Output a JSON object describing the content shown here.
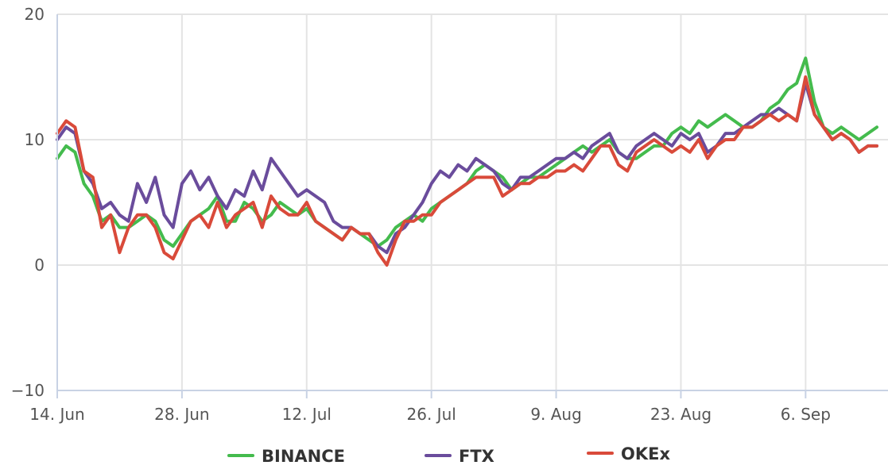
{
  "chart_data": {
    "type": "line",
    "title": "",
    "xlabel": "",
    "ylabel": "",
    "ylim": [
      -10,
      20
    ],
    "y_ticks": [
      "20",
      "10",
      "0",
      "−10"
    ],
    "y_tick_values": [
      20,
      10,
      0,
      -10
    ],
    "x_ticks": [
      "14. Jun",
      "28. Jun",
      "12. Jul",
      "26. Jul",
      "9. Aug",
      "23. Aug",
      "6. Sep"
    ],
    "x_tick_days": [
      0,
      14,
      28,
      42,
      56,
      70,
      84
    ],
    "x_range_days": [
      0,
      92
    ],
    "legend_position": "bottom",
    "series": [
      {
        "name": "BINANCE",
        "color": "#44bb4d",
        "x": [
          0,
          1,
          2,
          3,
          4,
          5,
          6,
          7,
          8,
          9,
          10,
          11,
          12,
          13,
          14,
          15,
          16,
          17,
          18,
          19,
          20,
          21,
          22,
          23,
          24,
          25,
          26,
          27,
          28,
          29,
          30,
          31,
          32,
          33,
          34,
          35,
          36,
          37,
          38,
          39,
          40,
          41,
          42,
          43,
          44,
          45,
          46,
          47,
          48,
          49,
          50,
          51,
          52,
          53,
          54,
          55,
          56,
          57,
          58,
          59,
          60,
          61,
          62,
          63,
          64,
          65,
          66,
          67,
          68,
          69,
          70,
          71,
          72,
          73,
          74,
          75,
          76,
          77,
          78,
          79,
          80,
          81,
          82,
          83,
          84,
          85,
          86,
          87,
          88,
          89,
          90,
          91,
          92
        ],
        "values": [
          8.5,
          9.5,
          9.0,
          6.5,
          5.5,
          3.5,
          4.0,
          3.0,
          3.0,
          3.5,
          4.0,
          3.5,
          2.0,
          1.5,
          2.5,
          3.5,
          4.0,
          4.5,
          5.5,
          3.5,
          3.5,
          5.0,
          4.5,
          3.5,
          4.0,
          5.0,
          4.5,
          4.0,
          4.5,
          3.5,
          3.0,
          2.5,
          2.0,
          3.0,
          2.5,
          2.0,
          1.5,
          2.0,
          3.0,
          3.5,
          4.0,
          3.5,
          4.5,
          5.0,
          5.5,
          6.0,
          6.5,
          7.5,
          8.0,
          7.5,
          7.0,
          6.0,
          6.5,
          7.0,
          7.0,
          7.5,
          8.0,
          8.5,
          9.0,
          9.5,
          9.0,
          9.5,
          10.0,
          9.0,
          8.5,
          8.5,
          9.0,
          9.5,
          9.5,
          10.5,
          11.0,
          10.5,
          11.5,
          11.0,
          11.5,
          12.0,
          11.5,
          11.0,
          11.0,
          11.5,
          12.5,
          13.0,
          14.0,
          14.5,
          16.5,
          13.0,
          11.0,
          10.5,
          11.0,
          10.5,
          10.0,
          10.5,
          11.0
        ]
      },
      {
        "name": "FTX",
        "color": "#6a4c9c",
        "x": [
          0,
          1,
          2,
          3,
          4,
          5,
          6,
          7,
          8,
          9,
          10,
          11,
          12,
          13,
          14,
          15,
          16,
          17,
          18,
          19,
          20,
          21,
          22,
          23,
          24,
          25,
          26,
          27,
          28,
          29,
          30,
          31,
          32,
          33,
          34,
          35,
          36,
          37,
          38,
          39,
          40,
          41,
          42,
          43,
          44,
          45,
          46,
          47,
          48,
          49,
          50,
          51,
          52,
          53,
          54,
          55,
          56,
          57,
          58,
          59,
          60,
          61,
          62,
          63,
          64,
          65,
          66,
          67,
          68,
          69,
          70,
          71,
          72,
          73,
          74,
          75,
          76,
          77,
          78,
          79,
          80,
          81,
          82,
          83,
          84,
          85,
          86,
          87,
          88,
          89,
          90,
          91,
          92
        ],
        "values": [
          10.0,
          11.0,
          10.5,
          7.5,
          6.5,
          4.5,
          5.0,
          4.0,
          3.5,
          6.5,
          5.0,
          7.0,
          4.0,
          3.0,
          6.5,
          7.5,
          6.0,
          7.0,
          5.5,
          4.5,
          6.0,
          5.5,
          7.5,
          6.0,
          8.5,
          7.5,
          6.5,
          5.5,
          6.0,
          5.5,
          5.0,
          3.5,
          3.0,
          3.0,
          2.5,
          2.5,
          1.5,
          1.0,
          2.5,
          3.0,
          4.0,
          5.0,
          6.5,
          7.5,
          7.0,
          8.0,
          7.5,
          8.5,
          8.0,
          7.5,
          6.5,
          6.0,
          7.0,
          7.0,
          7.5,
          8.0,
          8.5,
          8.5,
          9.0,
          8.5,
          9.5,
          10.0,
          10.5,
          9.0,
          8.5,
          9.5,
          10.0,
          10.5,
          10.0,
          9.5,
          10.5,
          10.0,
          10.5,
          9.0,
          9.5,
          10.5,
          10.5,
          11.0,
          11.5,
          12.0,
          12.0,
          12.5,
          12.0,
          11.5,
          14.5,
          12.0,
          11.0,
          10.0,
          10.5,
          10.0,
          9.0,
          9.5,
          9.5
        ]
      },
      {
        "name": "OKEx",
        "color": "#d94a3a",
        "x": [
          0,
          1,
          2,
          3,
          4,
          5,
          6,
          7,
          8,
          9,
          10,
          11,
          12,
          13,
          14,
          15,
          16,
          17,
          18,
          19,
          20,
          21,
          22,
          23,
          24,
          25,
          26,
          27,
          28,
          29,
          30,
          31,
          32,
          33,
          34,
          35,
          36,
          37,
          38,
          39,
          40,
          41,
          42,
          43,
          44,
          45,
          46,
          47,
          48,
          49,
          50,
          51,
          52,
          53,
          54,
          55,
          56,
          57,
          58,
          59,
          60,
          61,
          62,
          63,
          64,
          65,
          66,
          67,
          68,
          69,
          70,
          71,
          72,
          73,
          74,
          75,
          76,
          77,
          78,
          79,
          80,
          81,
          82,
          83,
          84,
          85,
          86,
          87,
          88,
          89,
          90,
          91,
          92
        ],
        "values": [
          10.5,
          11.5,
          11.0,
          7.5,
          7.0,
          3.0,
          4.0,
          1.0,
          3.0,
          4.0,
          4.0,
          3.0,
          1.0,
          0.5,
          2.0,
          3.5,
          4.0,
          3.0,
          5.0,
          3.0,
          4.0,
          4.5,
          5.0,
          3.0,
          5.5,
          4.5,
          4.0,
          4.0,
          5.0,
          3.5,
          3.0,
          2.5,
          2.0,
          3.0,
          2.5,
          2.5,
          1.0,
          0.0,
          2.0,
          3.5,
          3.5,
          4.0,
          4.0,
          5.0,
          5.5,
          6.0,
          6.5,
          7.0,
          7.0,
          7.0,
          5.5,
          6.0,
          6.5,
          6.5,
          7.0,
          7.0,
          7.5,
          7.5,
          8.0,
          7.5,
          8.5,
          9.5,
          9.5,
          8.0,
          7.5,
          9.0,
          9.5,
          10.0,
          9.5,
          9.0,
          9.5,
          9.0,
          10.0,
          8.5,
          9.5,
          10.0,
          10.0,
          11.0,
          11.0,
          11.5,
          12.0,
          11.5,
          12.0,
          11.5,
          15.0,
          12.0,
          11.0,
          10.0,
          10.5,
          10.0,
          9.0,
          9.5,
          9.5
        ]
      }
    ]
  }
}
